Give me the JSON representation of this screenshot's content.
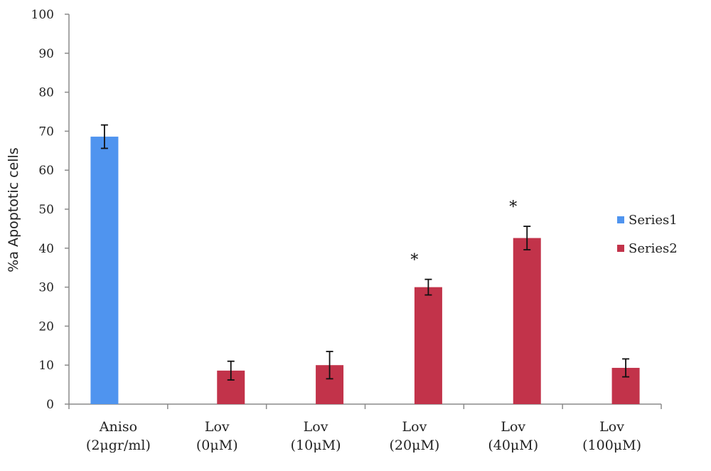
{
  "chart_data": {
    "type": "bar",
    "title": "",
    "xlabel": "",
    "ylabel": "%a Apoptotic cells",
    "ylim": [
      0,
      100
    ],
    "yticks": [
      0,
      10,
      20,
      30,
      40,
      50,
      60,
      70,
      80,
      90,
      100
    ],
    "grid": false,
    "legend_position": "right",
    "categories": [
      {
        "lines": [
          "Aniso",
          "(2μgr/ml)"
        ]
      },
      {
        "lines": [
          "Lov",
          "(0μM)"
        ]
      },
      {
        "lines": [
          "Lov",
          "(10μM)"
        ]
      },
      {
        "lines": [
          "Lov",
          "(20μM)"
        ]
      },
      {
        "lines": [
          "Lov",
          "(40μM)"
        ]
      },
      {
        "lines": [
          "Lov",
          "(100μM)"
        ]
      }
    ],
    "series": [
      {
        "name": "Series1",
        "color": "#4f94ef",
        "values": [
          68.6,
          null,
          null,
          null,
          null,
          null
        ],
        "errors": [
          3.0,
          null,
          null,
          null,
          null,
          null
        ]
      },
      {
        "name": "Series2",
        "color": "#c2334a",
        "values": [
          null,
          8.6,
          10.0,
          30.0,
          42.6,
          9.3
        ],
        "errors": [
          null,
          2.4,
          3.5,
          2.0,
          3.0,
          2.3
        ]
      }
    ],
    "annotations": [
      {
        "category_index": 3,
        "text": "*"
      },
      {
        "category_index": 4,
        "text": "*"
      }
    ]
  }
}
